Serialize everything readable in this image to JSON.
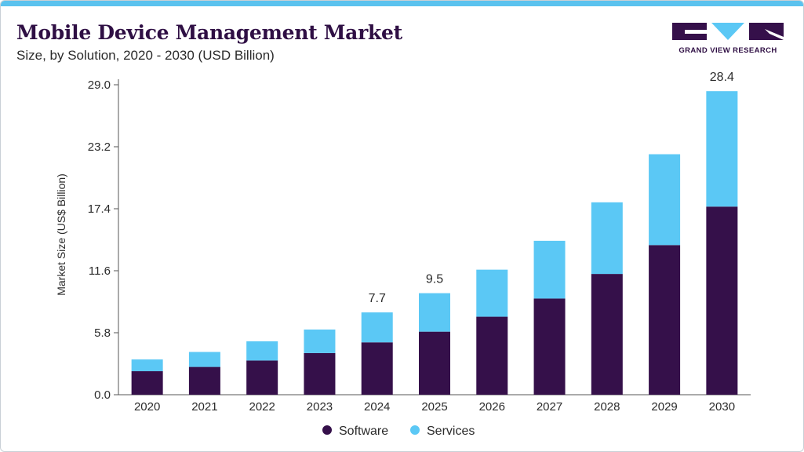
{
  "header": {
    "title": "Mobile Device Management Market",
    "subtitle": "Size, by Solution, 2020 - 2030 (USD Billion)"
  },
  "logo": {
    "text": "GRAND VIEW RESEARCH"
  },
  "colors": {
    "software": "#35104a",
    "services": "#5bc8f5",
    "accent": "#5bc2ee"
  },
  "chart_data": {
    "type": "bar",
    "stacked": true,
    "categories": [
      "2020",
      "2021",
      "2022",
      "2023",
      "2024",
      "2025",
      "2026",
      "2027",
      "2028",
      "2029",
      "2030"
    ],
    "series": [
      {
        "name": "Software",
        "values": [
          2.2,
          2.6,
          3.2,
          3.9,
          4.9,
          5.9,
          7.3,
          9.0,
          11.3,
          14.0,
          17.6
        ]
      },
      {
        "name": "Services",
        "values": [
          1.1,
          1.4,
          1.8,
          2.2,
          2.8,
          3.6,
          4.4,
          5.4,
          6.7,
          8.5,
          10.8
        ]
      }
    ],
    "data_labels": {
      "2024": "7.7",
      "2025": "9.5",
      "2030": "28.4"
    },
    "ylabel": "Market Size (US$ Billion)",
    "xlabel": "",
    "ylim": [
      0,
      29.0
    ],
    "yticks": [
      "0.0",
      "5.8",
      "11.6",
      "17.4",
      "23.2",
      "29.0"
    ],
    "grid": false,
    "legend": "bottom-center"
  }
}
